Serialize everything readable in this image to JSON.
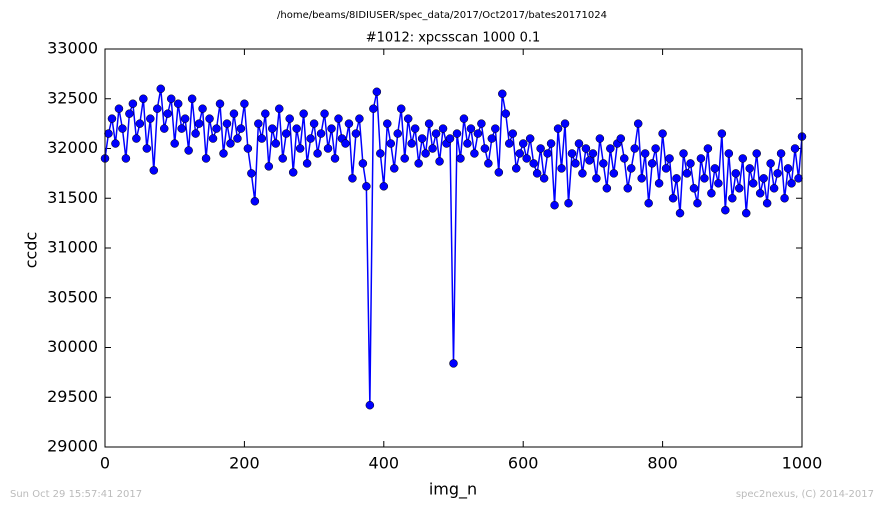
{
  "chart_data": {
    "type": "line",
    "suptitle": "/home/beams/8IDIUSER/spec_data/2017/Oct2017/bates20171024",
    "title": "#1012: xpcsscan 1000 0.1",
    "xlabel": "img_n",
    "ylabel": "ccdc",
    "xlim": [
      0,
      1000
    ],
    "ylim": [
      29000,
      33000
    ],
    "xticks": [
      0,
      200,
      400,
      600,
      800,
      1000
    ],
    "yticks": [
      29000,
      29500,
      30000,
      30500,
      31000,
      31500,
      32000,
      32500,
      33000
    ],
    "grid": false,
    "series": [
      {
        "color": "#0000ff",
        "x": [
          0,
          5,
          10,
          15,
          20,
          25,
          30,
          35,
          40,
          45,
          50,
          55,
          60,
          65,
          70,
          75,
          80,
          85,
          90,
          95,
          100,
          105,
          110,
          115,
          120,
          125,
          130,
          135,
          140,
          145,
          150,
          155,
          160,
          165,
          170,
          175,
          180,
          185,
          190,
          195,
          200,
          205,
          210,
          215,
          220,
          225,
          230,
          235,
          240,
          245,
          250,
          255,
          260,
          265,
          270,
          275,
          280,
          285,
          290,
          295,
          300,
          305,
          310,
          315,
          320,
          325,
          330,
          335,
          340,
          345,
          350,
          355,
          360,
          365,
          370,
          375,
          380,
          385,
          390,
          395,
          400,
          405,
          410,
          415,
          420,
          425,
          430,
          435,
          440,
          445,
          450,
          455,
          460,
          465,
          470,
          475,
          480,
          485,
          490,
          495,
          500,
          505,
          510,
          515,
          520,
          525,
          530,
          535,
          540,
          545,
          550,
          555,
          560,
          565,
          570,
          575,
          580,
          585,
          590,
          595,
          600,
          605,
          610,
          615,
          620,
          625,
          630,
          635,
          640,
          645,
          650,
          655,
          660,
          665,
          670,
          675,
          680,
          685,
          690,
          695,
          700,
          705,
          710,
          715,
          720,
          725,
          730,
          735,
          740,
          745,
          750,
          755,
          760,
          765,
          770,
          775,
          780,
          785,
          790,
          795,
          800,
          805,
          810,
          815,
          820,
          825,
          830,
          835,
          840,
          845,
          850,
          855,
          860,
          865,
          870,
          875,
          880,
          885,
          890,
          895,
          900,
          905,
          910,
          915,
          920,
          925,
          930,
          935,
          940,
          945,
          950,
          955,
          960,
          965,
          970,
          975,
          980,
          985,
          990,
          995,
          1000
        ],
        "values": [
          31900,
          32150,
          32300,
          32050,
          32400,
          32200,
          31900,
          32350,
          32450,
          32100,
          32250,
          32500,
          32000,
          32300,
          31780,
          32400,
          32600,
          32200,
          32350,
          32500,
          32050,
          32450,
          32200,
          32300,
          31980,
          32500,
          32150,
          32250,
          32400,
          31900,
          32300,
          32100,
          32200,
          32450,
          31950,
          32250,
          32050,
          32350,
          32100,
          32200,
          32450,
          32000,
          31750,
          31470,
          32250,
          32100,
          32350,
          31820,
          32200,
          32050,
          32400,
          31900,
          32150,
          32300,
          31760,
          32200,
          32000,
          32350,
          31850,
          32100,
          32250,
          31950,
          32150,
          32350,
          32000,
          32200,
          31900,
          32300,
          32100,
          32050,
          32250,
          31700,
          32150,
          32300,
          31850,
          31620,
          29420,
          32400,
          32570,
          31950,
          31620,
          32250,
          32050,
          31800,
          32150,
          32400,
          31900,
          32300,
          32050,
          32200,
          31850,
          32100,
          31950,
          32250,
          32000,
          32150,
          31870,
          32200,
          32050,
          32100,
          29840,
          32150,
          31900,
          32300,
          32050,
          32200,
          31950,
          32150,
          32250,
          32000,
          31850,
          32100,
          32200,
          31760,
          32550,
          32350,
          32050,
          32150,
          31800,
          31950,
          32050,
          31900,
          32100,
          31850,
          31750,
          32000,
          31700,
          31950,
          32050,
          31430,
          32200,
          31800,
          32250,
          31450,
          31950,
          31850,
          32050,
          31750,
          32000,
          31880,
          31950,
          31700,
          32100,
          31850,
          31600,
          32000,
          31750,
          32050,
          32100,
          31900,
          31600,
          31800,
          32000,
          32250,
          31700,
          31950,
          31450,
          31850,
          32000,
          31650,
          32150,
          31800,
          31900,
          31500,
          31700,
          31350,
          31950,
          31750,
          31850,
          31600,
          31450,
          31900,
          31700,
          32000,
          31550,
          31800,
          31650,
          32150,
          31380,
          31950,
          31500,
          31750,
          31600,
          31900,
          31350,
          31800,
          31650,
          31950,
          31550,
          31700,
          31450,
          31850,
          31600,
          31750,
          31950,
          31500,
          31800,
          31650,
          32000,
          31700,
          32120
        ]
      }
    ]
  },
  "footer_left": "Sun Oct 29 15:57:41 2017",
  "footer_right": "spec2nexus, (C) 2014-2017"
}
